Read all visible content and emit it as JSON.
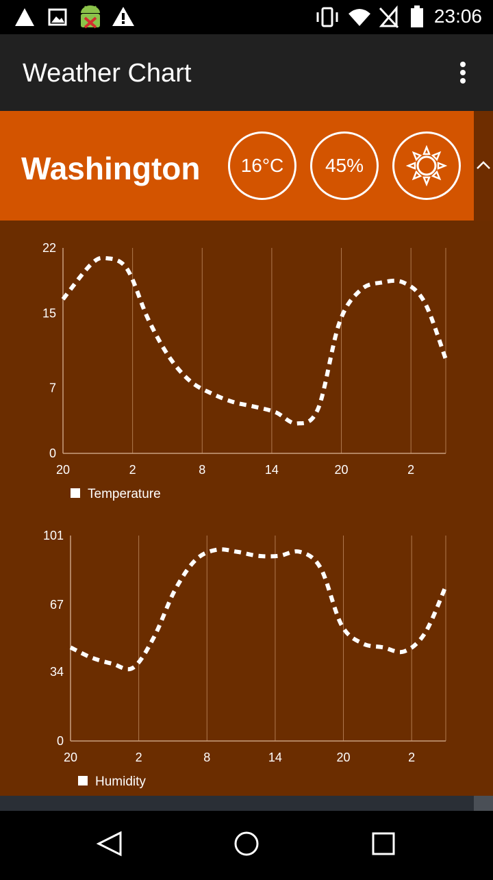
{
  "status_bar": {
    "time": "23:06",
    "icons": [
      "warning-triangle-icon",
      "image-icon",
      "android-debug-icon",
      "alert-icon",
      "vibrate-icon",
      "wifi-icon",
      "no-signal-icon",
      "battery-icon"
    ]
  },
  "app_bar": {
    "title": "Weather Chart",
    "menu_icon": "overflow-menu-icon"
  },
  "header": {
    "city": "Washington",
    "temperature": "16°C",
    "humidity": "45%",
    "condition_icon": "sun-icon",
    "collapse_icon": "chevron-up-icon"
  },
  "chart_data": [
    {
      "type": "line",
      "title": "",
      "xlabel": "",
      "ylabel": "",
      "x_tick_labels": [
        "20",
        "2",
        "8",
        "14",
        "20",
        "2"
      ],
      "y_tick_labels": [
        "0",
        "7",
        "15",
        "22"
      ],
      "ylim": [
        0,
        22
      ],
      "legend": "bottom-left",
      "series": [
        {
          "name": "Temperature",
          "color": "#ffffff",
          "line_style": "dashed",
          "points": [
            [
              0,
              16.5
            ],
            [
              1.3,
              20.2
            ],
            [
              2,
              20.9
            ],
            [
              3,
              19.8
            ],
            [
              4,
              14.4
            ],
            [
              5,
              10.3
            ],
            [
              6,
              7.7
            ],
            [
              7,
              6.4
            ],
            [
              8,
              5.5
            ],
            [
              9,
              5.0
            ],
            [
              10,
              4.4
            ],
            [
              11,
              3.2
            ],
            [
              12,
              4.8
            ],
            [
              13,
              14.0
            ],
            [
              14,
              17.5
            ],
            [
              15,
              18.3
            ],
            [
              16,
              18.3
            ],
            [
              17,
              16.2
            ],
            [
              18,
              10.1
            ]
          ]
        }
      ]
    },
    {
      "type": "line",
      "title": "",
      "xlabel": "",
      "ylabel": "",
      "x_tick_labels": [
        "20",
        "2",
        "8",
        "14",
        "20",
        "2"
      ],
      "y_tick_labels": [
        "0",
        "34",
        "67",
        "101"
      ],
      "ylim": [
        0,
        101
      ],
      "legend": "bottom-left",
      "series": [
        {
          "name": "Humidity",
          "color": "#ffffff",
          "line_style": "dashed",
          "points": [
            [
              0,
              46
            ],
            [
              1,
              41
            ],
            [
              2,
              38
            ],
            [
              3,
              36
            ],
            [
              4,
              51
            ],
            [
              5,
              74
            ],
            [
              6,
              89
            ],
            [
              7,
              94
            ],
            [
              8,
              93
            ],
            [
              9,
              91
            ],
            [
              10,
              91
            ],
            [
              11,
              93
            ],
            [
              12,
              85
            ],
            [
              13,
              57
            ],
            [
              14,
              48
            ],
            [
              15,
              46
            ],
            [
              16,
              44
            ],
            [
              17,
              53
            ],
            [
              18,
              76
            ]
          ]
        }
      ]
    }
  ],
  "nav_bar": {
    "icons": [
      "back-icon",
      "home-icon",
      "recents-icon"
    ]
  },
  "colors": {
    "status_bar": "#000000",
    "app_bar": "#212121",
    "header": "#d35400",
    "content_bg": "#6b2d00",
    "text": "#ffffff"
  }
}
